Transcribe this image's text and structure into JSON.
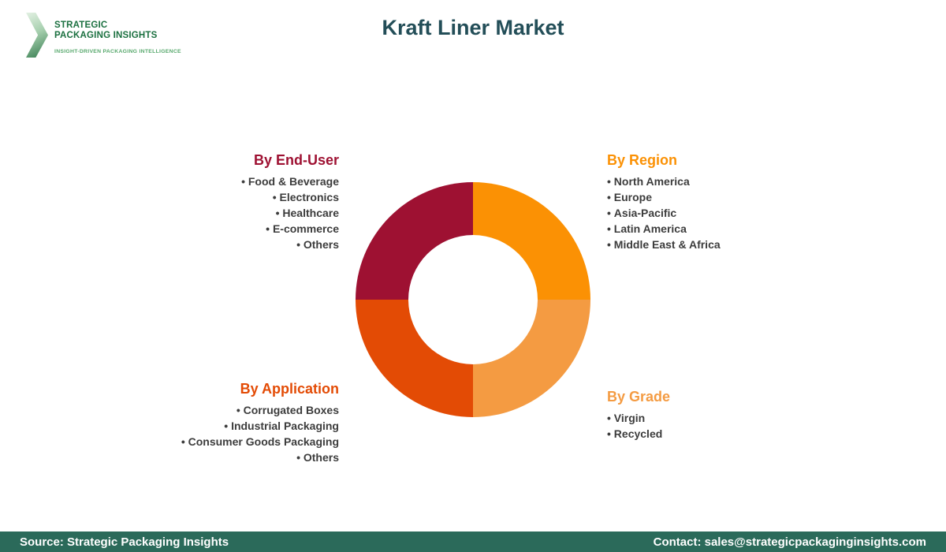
{
  "page": {
    "title": "Kraft Liner Market"
  },
  "logo": {
    "line1": "STRATEGIC",
    "line2": "PACKAGING INSIGHTS",
    "tagline": "INSIGHT-DRIVEN PACKAGING INTELLIGENCE"
  },
  "colors": {
    "title": "#234E58",
    "footer_bg": "#2B6A5A",
    "crimson": "#9E1132",
    "orange": "#FB9104",
    "light_orange": "#F49B42",
    "orange_red": "#E34B05"
  },
  "chart_data": {
    "type": "pie",
    "donut": true,
    "title": "Kraft Liner Market",
    "legend_position": "around",
    "segments": [
      {
        "label": "By Region",
        "value": 25,
        "color": "#FB9104"
      },
      {
        "label": "By Grade",
        "value": 25,
        "color": "#F49B42"
      },
      {
        "label": "By Application",
        "value": 25,
        "color": "#E34B05"
      },
      {
        "label": "By End-User",
        "value": 25,
        "color": "#9E1132"
      }
    ]
  },
  "sections": [
    {
      "heading": "By End-User",
      "color": "#9E1132",
      "items": [
        "Food & Beverage",
        "Electronics",
        "Healthcare",
        "E-commerce",
        "Others"
      ]
    },
    {
      "heading": "By Region",
      "color": "#FB9104",
      "items": [
        "North America",
        "Europe",
        "Asia-Pacific",
        "Latin America",
        "Middle East & Africa"
      ]
    },
    {
      "heading": "By Application",
      "color": "#E34B05",
      "items": [
        "Corrugated Boxes",
        "Industrial Packaging",
        "Consumer Goods Packaging",
        "Others"
      ]
    },
    {
      "heading": "By Grade",
      "color": "#F49B42",
      "items": [
        "Virgin",
        "Recycled"
      ]
    }
  ],
  "footer": {
    "source": "Source: Strategic Packaging Insights",
    "contact": "Contact: sales@strategicpackaginginsights.com"
  }
}
